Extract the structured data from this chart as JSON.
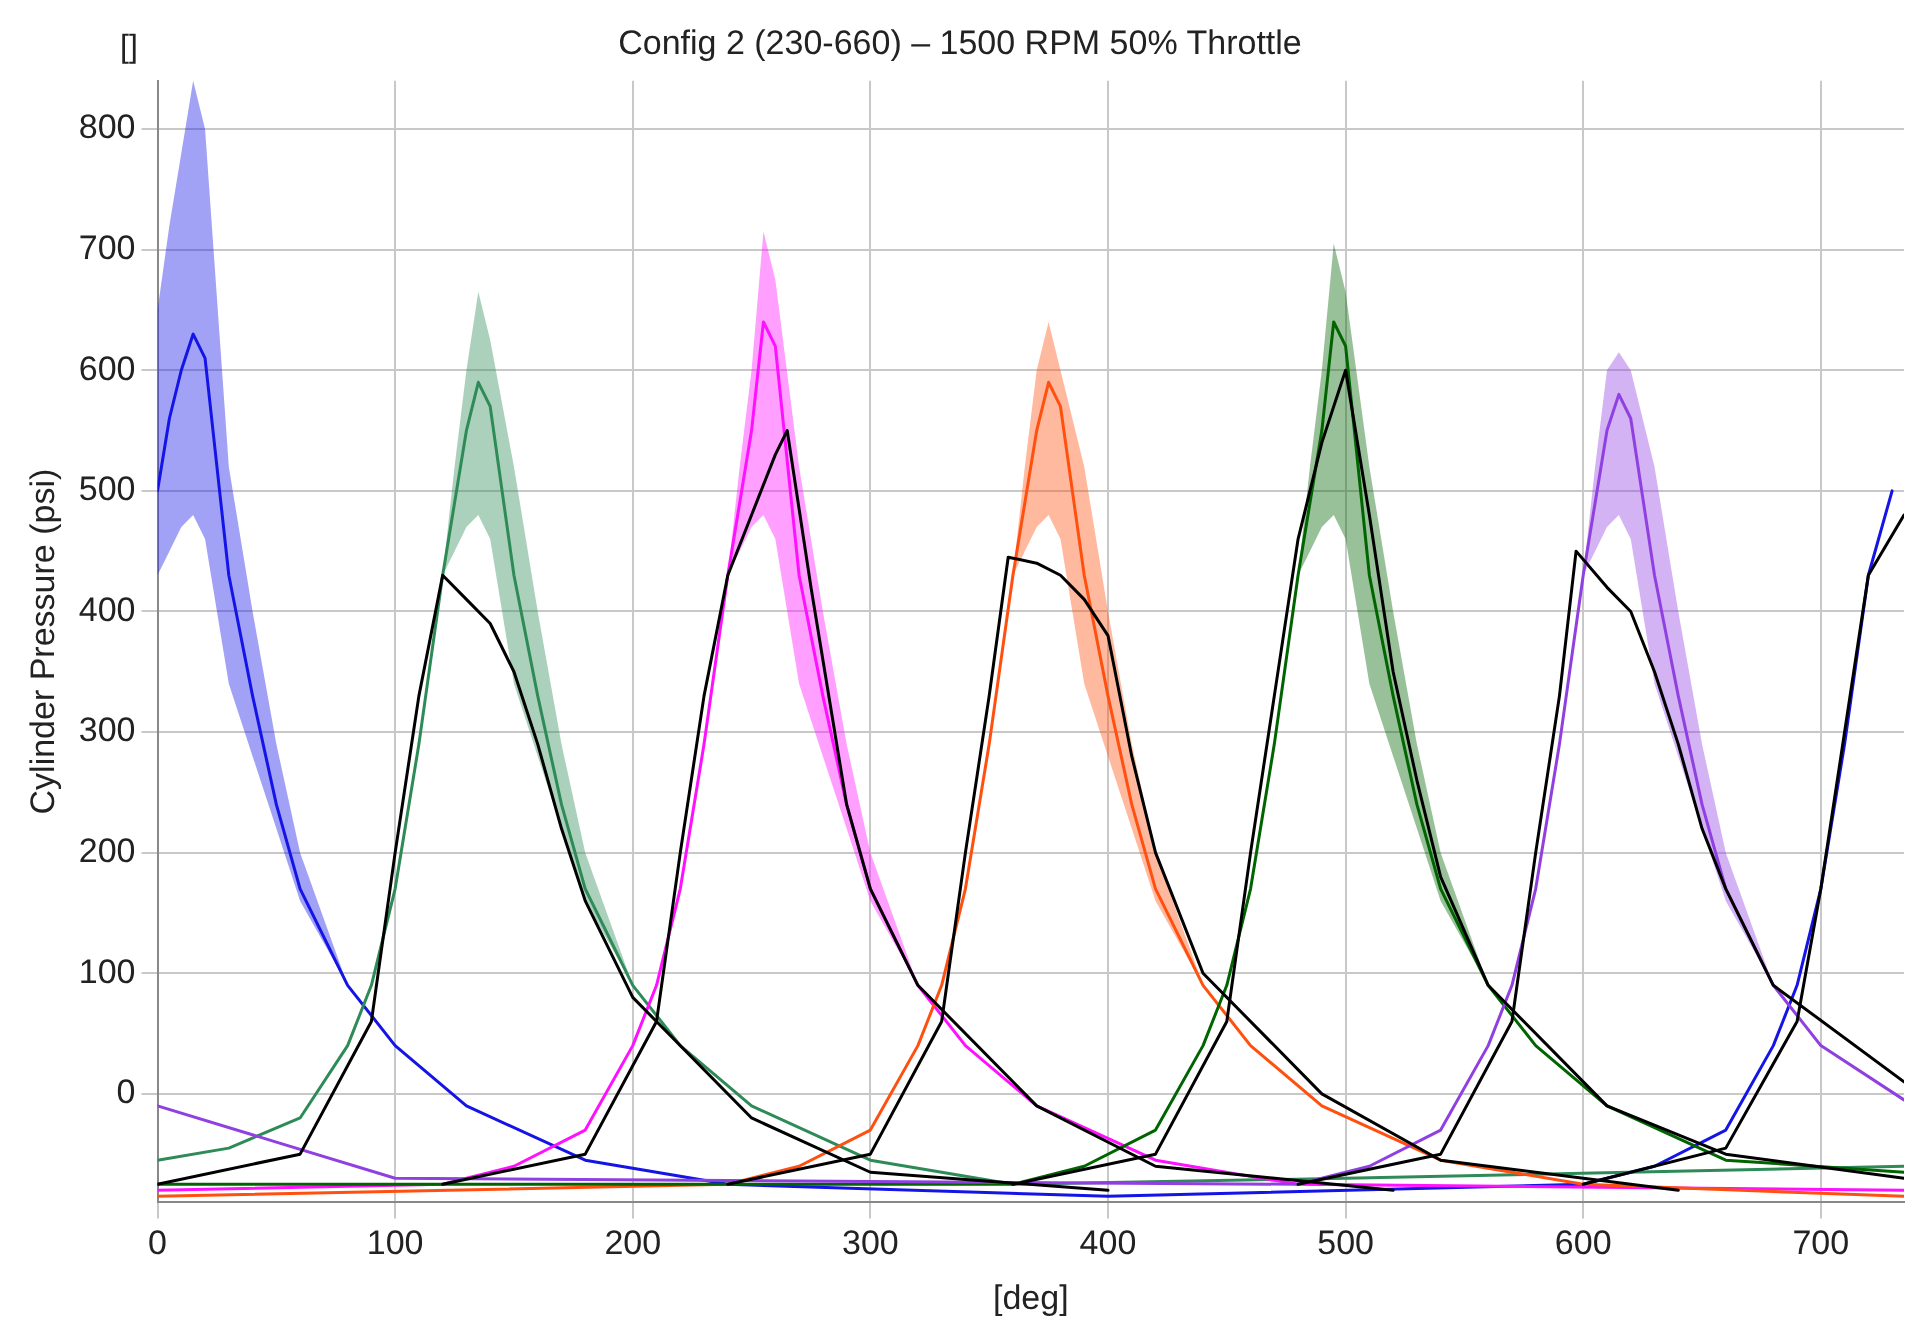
{
  "chart_data": {
    "type": "line",
    "title": "Config 2 (230-660) – 1500 RPM 50% Throttle",
    "xlabel": "[deg]",
    "ylabel": "Cylinder Pressure (psi)",
    "annotations": [
      "[]"
    ],
    "xlim": [
      0,
      735
    ],
    "xticks": [
      0,
      100,
      200,
      300,
      400,
      500,
      600,
      700
    ],
    "ylim": [
      -90,
      840
    ],
    "yticks": [
      0,
      100,
      200,
      300,
      400,
      500,
      600,
      700,
      800
    ],
    "grid": true,
    "legend": false,
    "marker": "none",
    "line_style": "solid",
    "series": [
      {
        "color": "#1414e6",
        "x": [
          0,
          5,
          10,
          15,
          20,
          30,
          40,
          50,
          60,
          80,
          100,
          130,
          180,
          240,
          400,
          600,
          630,
          660,
          680,
          690,
          700,
          710,
          720,
          730
        ],
        "values": [
          500,
          560,
          600,
          630,
          610,
          430,
          330,
          240,
          170,
          90,
          40,
          -10,
          -55,
          -75,
          -85,
          -75,
          -60,
          -30,
          40,
          90,
          170,
          290,
          430,
          500
        ],
        "lower": [
          430,
          450,
          470,
          480,
          460,
          340,
          280,
          220,
          160,
          90,
          40,
          -10,
          -55,
          -75,
          -85,
          -75,
          -60,
          -30,
          40,
          90,
          170,
          290,
          430,
          500
        ],
        "upper": [
          650,
          720,
          780,
          840,
          800,
          520,
          400,
          290,
          200,
          90,
          40,
          -10,
          -55,
          -75,
          -85,
          -75,
          -60,
          -30,
          40,
          90,
          170,
          290,
          430,
          500
        ]
      },
      {
        "color": "#2e8b57",
        "x": [
          0,
          30,
          60,
          80,
          90,
          100,
          110,
          120,
          125,
          130,
          135,
          140,
          150,
          160,
          170,
          180,
          200,
          220,
          250,
          300,
          360,
          500,
          735
        ],
        "values": [
          -55,
          -45,
          -20,
          40,
          90,
          170,
          290,
          430,
          490,
          550,
          590,
          570,
          430,
          330,
          240,
          170,
          90,
          40,
          -10,
          -55,
          -75,
          -70,
          -60
        ],
        "lower": [
          -55,
          -45,
          -20,
          40,
          90,
          170,
          290,
          430,
          450,
          470,
          480,
          460,
          340,
          280,
          220,
          160,
          90,
          40,
          -10,
          -55,
          -75,
          -70,
          -60
        ],
        "upper": [
          -55,
          -45,
          -20,
          40,
          90,
          170,
          290,
          430,
          520,
          600,
          665,
          625,
          520,
          400,
          290,
          200,
          90,
          40,
          -10,
          -55,
          -75,
          -70,
          -60
        ]
      },
      {
        "color": "#ff10ff",
        "x": [
          0,
          120,
          150,
          180,
          200,
          210,
          220,
          230,
          240,
          245,
          250,
          255,
          260,
          270,
          280,
          290,
          300,
          320,
          340,
          370,
          420,
          480,
          735
        ],
        "values": [
          -80,
          -75,
          -60,
          -30,
          40,
          90,
          170,
          290,
          430,
          490,
          550,
          640,
          620,
          430,
          330,
          240,
          170,
          90,
          40,
          -10,
          -55,
          -75,
          -80
        ],
        "lower": [
          -80,
          -75,
          -60,
          -30,
          40,
          90,
          170,
          290,
          430,
          450,
          470,
          480,
          460,
          340,
          280,
          220,
          160,
          90,
          40,
          -10,
          -55,
          -75,
          -80
        ],
        "upper": [
          -80,
          -75,
          -60,
          -30,
          40,
          90,
          170,
          290,
          430,
          520,
          600,
          715,
          675,
          520,
          400,
          290,
          200,
          90,
          40,
          -10,
          -55,
          -75,
          -80
        ]
      },
      {
        "color": "#ff5010",
        "x": [
          0,
          240,
          270,
          300,
          320,
          330,
          340,
          350,
          360,
          365,
          370,
          375,
          380,
          390,
          400,
          410,
          420,
          440,
          460,
          490,
          540,
          600,
          735
        ],
        "values": [
          -85,
          -75,
          -60,
          -30,
          40,
          90,
          170,
          290,
          430,
          490,
          550,
          590,
          570,
          430,
          330,
          240,
          170,
          90,
          40,
          -10,
          -55,
          -75,
          -85
        ],
        "lower": [
          -85,
          -75,
          -60,
          -30,
          40,
          90,
          170,
          290,
          430,
          450,
          470,
          480,
          460,
          340,
          280,
          220,
          160,
          90,
          40,
          -10,
          -55,
          -75,
          -85
        ],
        "upper": [
          -85,
          -75,
          -60,
          -30,
          40,
          90,
          170,
          290,
          430,
          520,
          600,
          640,
          600,
          520,
          400,
          290,
          200,
          90,
          40,
          -10,
          -55,
          -75,
          -85
        ]
      },
      {
        "color": "#006400",
        "x": [
          0,
          360,
          390,
          420,
          440,
          450,
          460,
          470,
          480,
          485,
          490,
          495,
          500,
          510,
          520,
          530,
          540,
          560,
          580,
          610,
          660,
          735
        ],
        "values": [
          -75,
          -75,
          -60,
          -30,
          40,
          90,
          170,
          290,
          430,
          490,
          550,
          640,
          620,
          430,
          330,
          240,
          170,
          90,
          40,
          -10,
          -55,
          -65
        ],
        "lower": [
          -75,
          -75,
          -60,
          -30,
          40,
          90,
          170,
          290,
          430,
          450,
          470,
          480,
          460,
          340,
          280,
          220,
          160,
          90,
          40,
          -10,
          -55,
          -65
        ],
        "upper": [
          -75,
          -75,
          -60,
          -30,
          40,
          90,
          170,
          290,
          430,
          520,
          600,
          705,
          665,
          520,
          400,
          290,
          200,
          90,
          40,
          -10,
          -55,
          -65
        ]
      },
      {
        "color": "#9040e0",
        "x": [
          0,
          50,
          100,
          480,
          510,
          540,
          560,
          570,
          580,
          590,
          600,
          605,
          610,
          615,
          620,
          630,
          640,
          650,
          660,
          680,
          700,
          735
        ],
        "values": [
          -10,
          -40,
          -70,
          -75,
          -60,
          -30,
          40,
          90,
          170,
          290,
          430,
          490,
          550,
          580,
          560,
          430,
          330,
          240,
          170,
          90,
          40,
          -5
        ],
        "lower": [
          -10,
          -40,
          -70,
          -75,
          -60,
          -30,
          40,
          90,
          170,
          290,
          430,
          450,
          470,
          480,
          460,
          340,
          280,
          220,
          160,
          90,
          40,
          -5
        ],
        "upper": [
          -10,
          -40,
          -70,
          -75,
          -60,
          -30,
          40,
          90,
          170,
          290,
          430,
          520,
          600,
          615,
          600,
          520,
          400,
          290,
          200,
          90,
          40,
          -5
        ]
      },
      {
        "color": "#000000",
        "x": [
          0,
          60,
          90,
          100,
          110,
          120,
          130,
          140,
          150,
          160,
          170,
          180,
          200,
          250,
          300,
          400
        ],
        "values": [
          -75,
          -50,
          60,
          200,
          330,
          430,
          410,
          390,
          350,
          290,
          220,
          160,
          80,
          -20,
          -65,
          -80
        ]
      },
      {
        "color": "#000000",
        "x": [
          120,
          180,
          210,
          220,
          230,
          240,
          250,
          260,
          265,
          275,
          290,
          300,
          320,
          370,
          420,
          520
        ],
        "values": [
          -75,
          -50,
          60,
          200,
          330,
          430,
          480,
          530,
          550,
          420,
          240,
          170,
          90,
          -10,
          -60,
          -80
        ]
      },
      {
        "color": "#000000",
        "x": [
          240,
          300,
          330,
          340,
          350,
          358,
          370,
          380,
          390,
          400,
          410,
          420,
          440,
          490,
          540,
          640
        ],
        "values": [
          -75,
          -50,
          60,
          200,
          330,
          445,
          440,
          430,
          410,
          380,
          280,
          200,
          100,
          0,
          -55,
          -80
        ]
      },
      {
        "color": "#000000",
        "x": [
          360,
          420,
          450,
          460,
          470,
          480,
          490,
          500,
          510,
          520,
          530,
          540,
          560,
          610,
          660,
          735
        ],
        "values": [
          -75,
          -50,
          60,
          200,
          330,
          460,
          540,
          600,
          480,
          350,
          260,
          180,
          90,
          -10,
          -50,
          -70
        ]
      },
      {
        "color": "#000000",
        "x": [
          480,
          540,
          570,
          580,
          590,
          597,
          610,
          620,
          630,
          640,
          650,
          660,
          680,
          735
        ],
        "values": [
          -75,
          -50,
          60,
          200,
          330,
          450,
          420,
          400,
          350,
          290,
          220,
          170,
          90,
          10
        ]
      },
      {
        "color": "#000000",
        "x": [
          600,
          660,
          690,
          700,
          710,
          720,
          735
        ],
        "values": [
          -75,
          -45,
          60,
          170,
          300,
          430,
          480
        ]
      }
    ]
  }
}
